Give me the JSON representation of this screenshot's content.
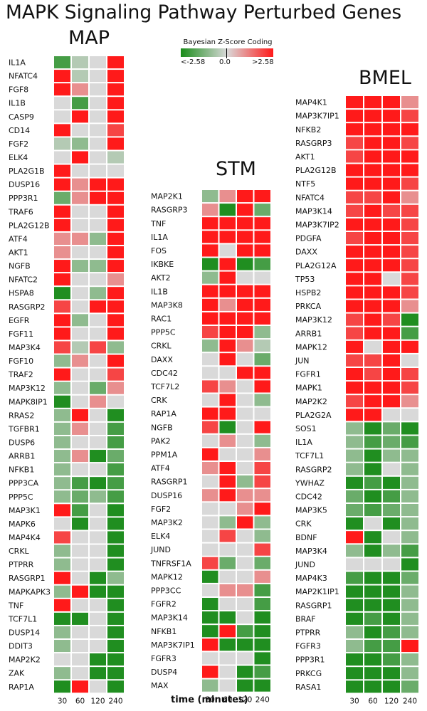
{
  "page": {
    "title": "MAPK Signaling Pathway Perturbed Genes",
    "xlabel": "time (minutes)"
  },
  "legend": {
    "title": "Bayesian Z-Score Coding",
    "low": "<-2.58",
    "mid": "0.0",
    "high": ">2.58",
    "low_color": "#1a8c1a",
    "mid_color": "#d9d9d9",
    "high_color": "#ff1a1a"
  },
  "chart_data": [
    {
      "type": "heatmap",
      "title": "MAP",
      "x": [
        "30",
        "60",
        "120",
        "240"
      ],
      "rows": [
        "IL1A",
        "NFATC4",
        "FGF8",
        "IL1B",
        "CASP9",
        "CD14",
        "FGF2",
        "ELK4",
        "PLA2G1B",
        "DUSP16",
        "PPP3R1",
        "TRAF6",
        "PLA2G12B",
        "ATF4",
        "AKT1",
        "NGFB",
        "NFATC2",
        "HSPA8",
        "RASGRP2",
        "EGFR",
        "FGF11",
        "MAP3K4",
        "FGF10",
        "TRAF2",
        "MAP3K12",
        "MAPK8IP1",
        "RRAS2",
        "TGFBR1",
        "DUSP6",
        "ARRB1",
        "NFKB1",
        "PPP3CA",
        "PPP5C",
        "MAP3K1",
        "MAPK6",
        "MAP4K4",
        "CRKL",
        "PTPRR",
        "RASGRP1",
        "MAPKAPK3",
        "TNF",
        "TCF7L1",
        "DUSP14",
        "DDIT3",
        "MAP2K2",
        "ZAK",
        "RAP1A"
      ],
      "values": [
        [
          -2,
          -0.5,
          0,
          3
        ],
        [
          3,
          -0.5,
          0,
          3
        ],
        [
          3,
          1,
          0,
          3
        ],
        [
          0,
          -2,
          0,
          3
        ],
        [
          0,
          3,
          0,
          3
        ],
        [
          3,
          0,
          0,
          2
        ],
        [
          -0.5,
          -1,
          0,
          3
        ],
        [
          0,
          3,
          0,
          -0.5
        ],
        [
          3,
          0,
          0,
          0
        ],
        [
          3,
          1,
          3,
          3
        ],
        [
          -1.5,
          1,
          3,
          3
        ],
        [
          3,
          0,
          0,
          3
        ],
        [
          3,
          0,
          0,
          3
        ],
        [
          1,
          1,
          -1,
          3
        ],
        [
          1,
          0,
          0,
          3
        ],
        [
          3,
          -1,
          -1,
          3
        ],
        [
          3,
          0,
          0,
          1
        ],
        [
          -2.5,
          0,
          -1,
          3
        ],
        [
          2,
          0,
          3,
          3
        ],
        [
          3,
          -1,
          0,
          3
        ],
        [
          3,
          0,
          0,
          3
        ],
        [
          2,
          -0.5,
          2,
          -1
        ],
        [
          -1,
          1,
          0,
          3
        ],
        [
          3,
          0,
          0,
          2
        ],
        [
          -1,
          0,
          -1.5,
          1
        ],
        [
          -2.5,
          0,
          1,
          0
        ],
        [
          -1,
          3,
          0,
          -2.5
        ],
        [
          -1,
          1,
          0,
          -2
        ],
        [
          -1,
          0,
          0,
          -2
        ],
        [
          -1,
          1,
          -2.5,
          -1.5
        ],
        [
          -1,
          0,
          0,
          -2
        ],
        [
          -1,
          -2,
          -2.5,
          -2
        ],
        [
          -1,
          -1.5,
          -1,
          -2
        ],
        [
          3,
          -2,
          0,
          -2.5
        ],
        [
          0,
          -2.5,
          0,
          -2.5
        ],
        [
          2,
          0,
          0,
          -2.5
        ],
        [
          -1,
          0,
          0,
          -2.5
        ],
        [
          -1,
          0,
          0,
          -2.5
        ],
        [
          3,
          0,
          -2.5,
          -1
        ],
        [
          -1,
          3,
          -2.5,
          -2.5
        ],
        [
          3,
          0,
          0,
          -2.5
        ],
        [
          -2.5,
          -2.5,
          0,
          -2.5
        ],
        [
          -1,
          0,
          0,
          -2.5
        ],
        [
          -1,
          0,
          0,
          -2.5
        ],
        [
          0,
          0,
          -2.5,
          -2.5
        ],
        [
          -1,
          0,
          -2.5,
          -2.5
        ],
        [
          -2.5,
          3,
          0,
          -2.5
        ]
      ]
    },
    {
      "type": "heatmap",
      "title": "STM",
      "x": [
        "30",
        "60",
        "120",
        "240"
      ],
      "rows": [
        "MAP2K1",
        "RASGRP3",
        "TNF",
        "IL1A",
        "FOS",
        "IKBKE",
        "AKT2",
        "IL1B",
        "MAP3K8",
        "RAC1",
        "PPP5C",
        "CRKL",
        "DAXX",
        "CDC42",
        "TCF7L2",
        "CRK",
        "RAP1A",
        "NGFB",
        "PAK2",
        "PPM1A",
        "ATF4",
        "RASGRP1",
        "DUSP16",
        "FGF2",
        "MAP3K2",
        "ELK4",
        "JUND",
        "TNFRSF1A",
        "MAPK12",
        "PPP3CC",
        "FGFR2",
        "MAP3K14",
        "NFKB1",
        "MAP3K7IP1",
        "FGFR3",
        "DUSP4",
        "MAX"
      ],
      "values": [
        [
          -1,
          1,
          3,
          3
        ],
        [
          1,
          -2.5,
          3,
          -1.5
        ],
        [
          3,
          3,
          3,
          3
        ],
        [
          3,
          3,
          3,
          3
        ],
        [
          3,
          0,
          3,
          3
        ],
        [
          -2.5,
          3,
          -2.5,
          -2
        ],
        [
          -1,
          3,
          0,
          0
        ],
        [
          3,
          3,
          3,
          3
        ],
        [
          3,
          1,
          3,
          3
        ],
        [
          3,
          3,
          3,
          3
        ],
        [
          2,
          3,
          3,
          -1
        ],
        [
          -1,
          3,
          1,
          -0.5
        ],
        [
          0,
          3,
          0,
          -1.5
        ],
        [
          0,
          0,
          3,
          3
        ],
        [
          2,
          1,
          0,
          3
        ],
        [
          0,
          3,
          0,
          -1
        ],
        [
          3,
          3,
          0,
          0
        ],
        [
          2,
          -2.5,
          0,
          3
        ],
        [
          0,
          1,
          0,
          -1
        ],
        [
          3,
          0,
          0,
          1
        ],
        [
          1,
          3,
          0,
          2
        ],
        [
          0,
          3,
          -1,
          2
        ],
        [
          1,
          3,
          1,
          1
        ],
        [
          0,
          0,
          1,
          3
        ],
        [
          0,
          -1,
          3,
          -1
        ],
        [
          0,
          2,
          0,
          -1
        ],
        [
          0,
          0,
          0,
          2
        ],
        [
          2,
          -1.5,
          0,
          -1.5
        ],
        [
          -2.5,
          0,
          0,
          1
        ],
        [
          0,
          1,
          1,
          -2
        ],
        [
          -2.5,
          0,
          0,
          -2
        ],
        [
          -2.5,
          -2.5,
          0,
          -2.5
        ],
        [
          -2.5,
          3,
          -2,
          -2.5
        ],
        [
          3,
          -2.5,
          -2.5,
          -2.5
        ],
        [
          0,
          0,
          0,
          -2.5
        ],
        [
          3,
          0,
          -2.5,
          -2
        ],
        [
          -1,
          0,
          -2.5,
          -2.5
        ]
      ]
    },
    {
      "type": "heatmap",
      "title": "BMEL",
      "x": [
        "30",
        "60",
        "120",
        "240"
      ],
      "rows": [
        "MAP4K1",
        "MAP3K7IP1",
        "NFKB2",
        "RASGRP3",
        "AKT1",
        "PLA2G12B",
        "NTF5",
        "NFATC4",
        "MAP3K14",
        "MAP3K7IP2",
        "PDGFA",
        "DAXX",
        "PLA2G12A",
        "TP53",
        "HSPB2",
        "PRKCA",
        "MAP3K12",
        "ARRB1",
        "MAPK12",
        "JUN",
        "FGFR1",
        "MAPK1",
        "MAP2K2",
        "PLA2G2A",
        "SOS1",
        "IL1A",
        "TCF7L1",
        "RASGRP2",
        "YWHAZ",
        "CDC42",
        "MAP3K5",
        "CRK",
        "BDNF",
        "MAP3K4",
        "JUND",
        "MAP4K3",
        "MAP2K1IP1",
        "RASGRP1",
        "BRAF",
        "PTPRR",
        "FGFR3",
        "PPP3R1",
        "PRKCG",
        "RASA1"
      ],
      "values": [
        [
          3,
          3,
          3,
          1
        ],
        [
          3,
          3,
          3,
          2
        ],
        [
          3,
          3,
          3,
          3
        ],
        [
          2,
          3,
          3,
          2
        ],
        [
          2,
          3,
          3,
          3
        ],
        [
          3,
          3,
          3,
          3
        ],
        [
          3,
          3,
          3,
          2
        ],
        [
          2,
          2,
          3,
          1
        ],
        [
          2,
          3,
          2,
          2
        ],
        [
          3,
          3,
          3,
          2
        ],
        [
          2,
          3,
          3,
          2
        ],
        [
          3,
          3,
          3,
          2
        ],
        [
          3,
          3,
          3,
          2
        ],
        [
          3,
          3,
          0,
          2
        ],
        [
          3,
          3,
          3,
          2
        ],
        [
          3,
          3,
          3,
          1
        ],
        [
          2,
          3,
          2,
          -2.5
        ],
        [
          2,
          3,
          3,
          -2
        ],
        [
          3,
          0,
          3,
          3
        ],
        [
          2,
          2,
          3,
          0
        ],
        [
          3,
          2,
          3,
          2
        ],
        [
          3,
          3,
          3,
          2
        ],
        [
          2,
          3,
          3,
          1
        ],
        [
          3,
          3,
          0,
          0
        ],
        [
          -1,
          -2.5,
          -1.5,
          -2.5
        ],
        [
          -1,
          -2,
          -1.5,
          -2
        ],
        [
          -1,
          -2.5,
          -1,
          -1
        ],
        [
          -1,
          -2.5,
          0,
          -1
        ],
        [
          -2.5,
          -2,
          -2.5,
          -1
        ],
        [
          -1.5,
          -2.5,
          -2,
          -1
        ],
        [
          -1.5,
          -2,
          -1.5,
          -1
        ],
        [
          -2.5,
          0,
          -2.5,
          -1
        ],
        [
          3,
          -2.5,
          0,
          -1
        ],
        [
          -1,
          -2.5,
          -1,
          -2
        ],
        [
          0,
          0,
          0,
          -2.5
        ],
        [
          -2,
          -2.5,
          -2.5,
          -1.5
        ],
        [
          -2.5,
          -2.5,
          -2.5,
          -1
        ],
        [
          -2.5,
          -2.5,
          -2.5,
          -1
        ],
        [
          -2.5,
          -2,
          -2.5,
          -1
        ],
        [
          -1,
          -2.5,
          -2,
          -1
        ],
        [
          -1,
          -2,
          -2,
          3
        ],
        [
          -2.5,
          -2.5,
          -2,
          -1
        ],
        [
          -2.5,
          -2.5,
          -2.5,
          -1
        ],
        [
          -2.5,
          -2.5,
          -2.5,
          -1.5
        ]
      ]
    }
  ]
}
